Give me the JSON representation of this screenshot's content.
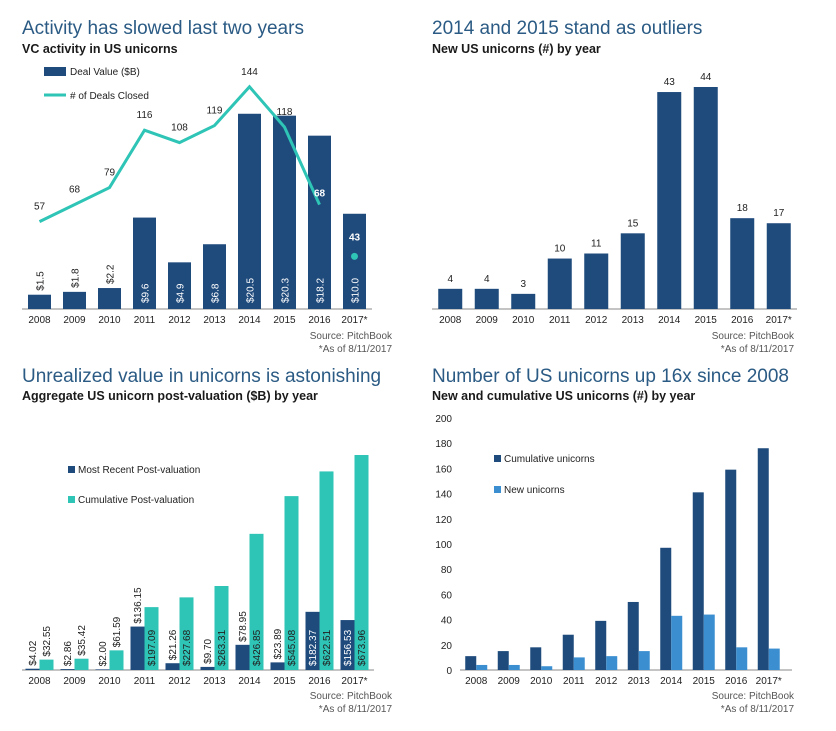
{
  "colors": {
    "navy": "#1f4a7c",
    "teal": "#2ec4b6",
    "blue": "#3b8fd1",
    "title": "#2b5b84"
  },
  "panels": [
    {
      "title": "Activity has slowed last two years",
      "subtitle": "VC activity in US unicorns",
      "source": "Source: PitchBook",
      "note": "*As of 8/11/2017"
    },
    {
      "title": "2014 and 2015 stand as outliers",
      "subtitle": "New US unicorns (#) by year",
      "source": "Source: PitchBook",
      "note": "*As of 8/11/2017"
    },
    {
      "title": "Unrealized value in unicorns is astonishing",
      "subtitle": "Aggregate US unicorn post-valuation ($B) by year",
      "source": "Source: PitchBook",
      "note": "*As of 8/11/2017"
    },
    {
      "title": "Number of US unicorns up 16x since 2008",
      "subtitle": "New and cumulative US unicorns (#) by year",
      "source": "Source: PitchBook",
      "note": "*As of 8/11/2017"
    }
  ],
  "chart_data": [
    {
      "type": "bar",
      "categories": [
        "2008",
        "2009",
        "2010",
        "2011",
        "2012",
        "2013",
        "2014",
        "2015",
        "2016",
        "2017*"
      ],
      "series": [
        {
          "name": "Deal Value ($B)",
          "kind": "bar",
          "values": [
            1.5,
            1.8,
            2.2,
            9.6,
            4.9,
            6.8,
            20.5,
            20.3,
            18.2,
            10.0
          ],
          "labels": [
            "$1.5",
            "$1.8",
            "$2.2",
            "$9.6",
            "$4.9",
            "$6.8",
            "$20.5",
            "$20.3",
            "$18.2",
            "$10.0"
          ]
        },
        {
          "name": "# of Deals Closed",
          "kind": "line",
          "values": [
            57,
            68,
            79,
            116,
            108,
            119,
            144,
            118,
            68,
            43
          ]
        }
      ],
      "legend": "top-left"
    },
    {
      "type": "bar",
      "categories": [
        "2008",
        "2009",
        "2010",
        "2011",
        "2012",
        "2013",
        "2014",
        "2015",
        "2016",
        "2017*"
      ],
      "values": [
        4,
        4,
        3,
        10,
        11,
        15,
        43,
        44,
        18,
        17
      ]
    },
    {
      "type": "bar",
      "categories": [
        "2008",
        "2009",
        "2010",
        "2011",
        "2012",
        "2013",
        "2014",
        "2015",
        "2016",
        "2017*"
      ],
      "series": [
        {
          "name": "Most Recent Post-valuation",
          "values": [
            4.02,
            2.86,
            2.0,
            136.15,
            21.26,
            9.7,
            78.95,
            23.89,
            182.37,
            156.53
          ],
          "labels": [
            "$4.02",
            "$2.86",
            "$2.00",
            "$136.15",
            "$21.26",
            "$9.70",
            "$78.95",
            "$23.89",
            "$182.37",
            "$156.53"
          ]
        },
        {
          "name": "Cumulative Post-valuation",
          "values": [
            32.55,
            35.42,
            61.59,
            197.09,
            227.68,
            263.31,
            426.85,
            545.08,
            622.51,
            673.96
          ],
          "labels": [
            "$32.55",
            "$35.42",
            "$61.59",
            "$197.09",
            "$227.68",
            "$263.31",
            "$426.85",
            "$545.08",
            "$622.51",
            "$673.96"
          ]
        }
      ],
      "legend": "top-left"
    },
    {
      "type": "bar",
      "categories": [
        "2008",
        "2009",
        "2010",
        "2011",
        "2012",
        "2013",
        "2014",
        "2015",
        "2016",
        "2017*"
      ],
      "series": [
        {
          "name": "Cumulative unicorns",
          "values": [
            11,
            15,
            18,
            28,
            39,
            54,
            97,
            141,
            159,
            176
          ]
        },
        {
          "name": "New unicorns",
          "values": [
            4,
            4,
            3,
            10,
            11,
            15,
            43,
            44,
            18,
            17
          ]
        }
      ],
      "ylim": [
        0,
        200
      ],
      "yticks": [
        "0",
        "20",
        "40",
        "60",
        "80",
        "100",
        "120",
        "140",
        "160",
        "180",
        "200"
      ],
      "grid": false,
      "legend": "top-left"
    }
  ]
}
